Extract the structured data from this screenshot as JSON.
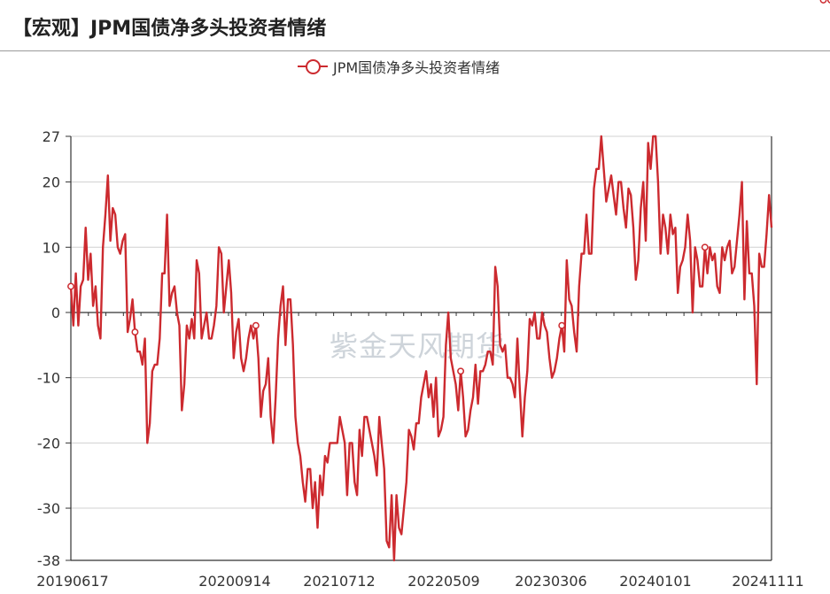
{
  "page_title": "【宏观】JPM国债净多头投资者情绪",
  "watermark": "紫金天风期货",
  "colors": {
    "series": "#cc2a2f",
    "grid": "#d0d0d0",
    "axis": "#333333"
  },
  "chart_data": {
    "type": "line",
    "title": "",
    "xlabel": "",
    "ylabel": "",
    "legend": "top-center",
    "grid": true,
    "ylim": [
      -38,
      27
    ],
    "y_ticks": [
      27,
      20,
      10,
      0,
      -10,
      -20,
      -30,
      -38
    ],
    "x_ticks": [
      "20190617",
      "20200914",
      "20210712",
      "20220509",
      "20230306",
      "20240101",
      "20241111"
    ],
    "series": [
      {
        "name": "JPM国债净多头投资者情绪",
        "values": [
          4,
          -2,
          6,
          -2,
          4,
          5,
          13,
          5,
          9,
          1,
          4,
          -2,
          -4,
          10,
          15,
          21,
          11,
          16,
          15,
          10,
          9,
          11,
          12,
          -3,
          -1,
          2,
          -3,
          -6,
          -6,
          -8,
          -4,
          -20,
          -17,
          -9,
          -8,
          -8,
          -4,
          6,
          6,
          15,
          1,
          3,
          4,
          0,
          -2,
          -15,
          -11,
          -2,
          -4,
          -1,
          -4,
          8,
          6,
          -4,
          -2,
          0,
          -4,
          -4,
          -2,
          1,
          10,
          9,
          0,
          4,
          8,
          3,
          -7,
          -3,
          -1,
          -7,
          -9,
          -7,
          -4,
          -2,
          -4,
          -2,
          -7,
          -16,
          -12,
          -11,
          -7,
          -16,
          -20,
          -13,
          -4,
          1,
          4,
          -5,
          2,
          2,
          -5,
          -16,
          -20,
          -22,
          -26,
          -29,
          -24,
          -24,
          -30,
          -26,
          -33,
          -25,
          -28,
          -22,
          -23,
          -20,
          -20,
          -20,
          -20,
          -16,
          -18,
          -20,
          -28,
          -20,
          -20,
          -26,
          -28,
          -18,
          -22,
          -16,
          -16,
          -18,
          -20,
          -22,
          -25,
          -16,
          -20,
          -24,
          -35,
          -36,
          -28,
          -38,
          -28,
          -33,
          -34,
          -30,
          -26,
          -18,
          -19,
          -21,
          -17,
          -17,
          -13,
          -11,
          -9,
          -13,
          -11,
          -16,
          -10,
          -19,
          -18,
          -16,
          -5,
          0,
          -7,
          -9,
          -11,
          -15,
          -9,
          -13,
          -19,
          -18,
          -15,
          -13,
          -8,
          -14,
          -9,
          -9,
          -8,
          -6,
          -6,
          -8,
          7,
          4,
          -5,
          -6,
          -5,
          -10,
          -10,
          -11,
          -13,
          -4,
          -12,
          -19,
          -13,
          -9,
          -1,
          -2,
          0,
          -4,
          -4,
          0,
          -2,
          -3,
          -7,
          -10,
          -9,
          -7,
          -4,
          -2,
          -6,
          8,
          2,
          1,
          -3,
          -6,
          4,
          9,
          9,
          15,
          9,
          9,
          19,
          22,
          22,
          27,
          22,
          17,
          19,
          21,
          18,
          15,
          20,
          20,
          16,
          13,
          19,
          18,
          13,
          5,
          8,
          16,
          20,
          11,
          26,
          22,
          27,
          27,
          20,
          9,
          15,
          13,
          9,
          15,
          12,
          13,
          3,
          7,
          8,
          10,
          15,
          11,
          0,
          10,
          8,
          4,
          4,
          10,
          6,
          10,
          8,
          9,
          4,
          3,
          10,
          8,
          10,
          11,
          6,
          7,
          11,
          15,
          20,
          2,
          14,
          6,
          6,
          1,
          -11,
          9,
          7,
          7,
          12,
          18,
          13
        ]
      }
    ],
    "marked_points": [
      0,
      26,
      75,
      158,
      199,
      257,
      305,
      308
    ]
  }
}
